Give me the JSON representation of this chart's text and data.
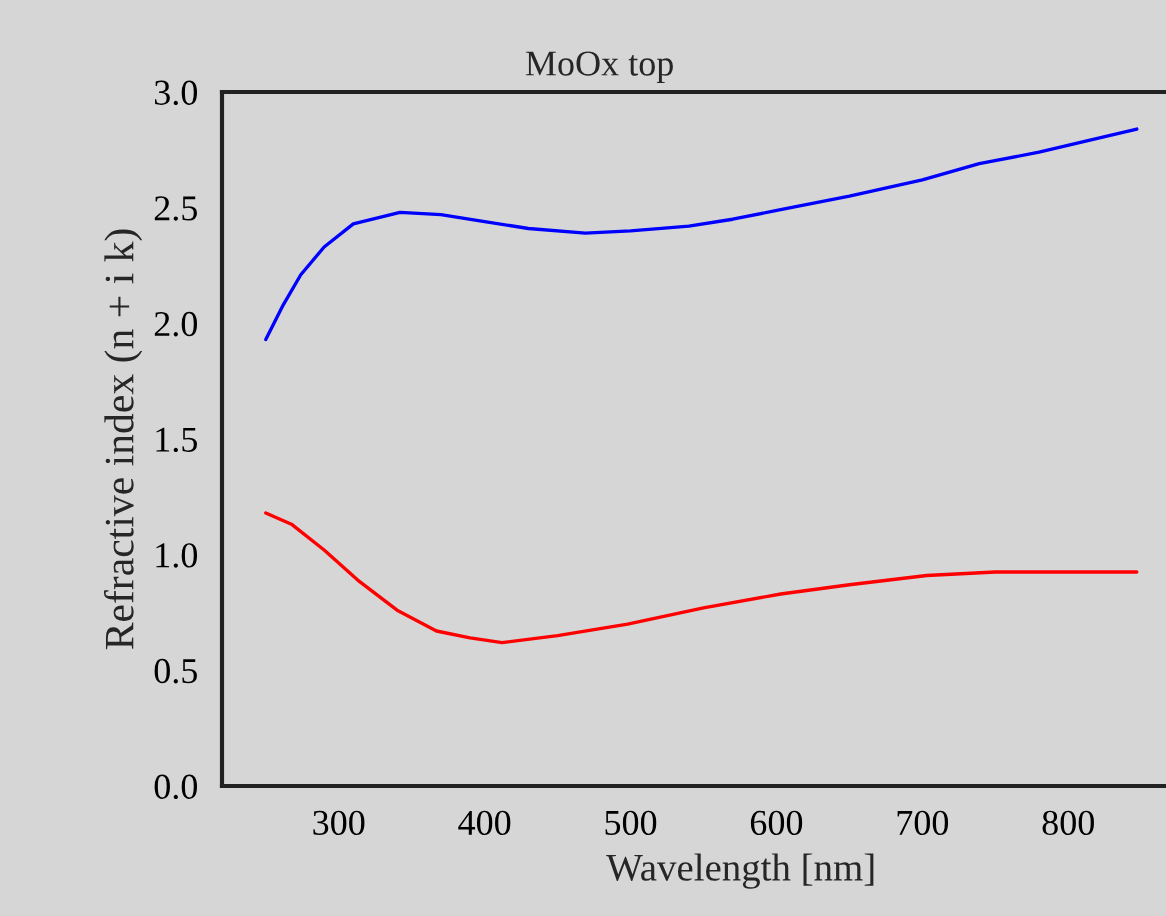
{
  "chart_data": {
    "type": "line",
    "title": "MoOx top",
    "xlabel": "Wavelength [nm]",
    "ylabel": "Refractive index (n + i k)",
    "series": [
      {
        "color": "#0000ff",
        "x": [
          250,
          262,
          274,
          290,
          310,
          342,
          370,
          400,
          430,
          469,
          500,
          540,
          570,
          602,
          650,
          700,
          739,
          780,
          820,
          847
        ],
        "values": [
          1.93,
          2.08,
          2.21,
          2.33,
          2.43,
          2.48,
          2.47,
          2.44,
          2.41,
          2.39,
          2.4,
          2.42,
          2.45,
          2.49,
          2.55,
          2.62,
          2.69,
          2.74,
          2.8,
          2.84
        ]
      },
      {
        "color": "#ff0000",
        "x": [
          250,
          268,
          290,
          313,
          340,
          367,
          390,
          412,
          450,
          498,
          550,
          603,
          650,
          703,
          750,
          800,
          847
        ],
        "values": [
          1.18,
          1.13,
          1.02,
          0.89,
          0.76,
          0.67,
          0.64,
          0.62,
          0.65,
          0.7,
          0.77,
          0.83,
          0.87,
          0.91,
          0.925,
          0.925,
          0.925
        ]
      }
    ],
    "xlim": [
      220,
      867
    ],
    "ylim": [
      0,
      3
    ],
    "xticks": [
      300,
      400,
      500,
      600,
      700,
      800
    ],
    "yticks": [
      {
        "value": 0,
        "label": "0.0"
      },
      {
        "value": 0.5,
        "label": "0.5"
      },
      {
        "value": 1,
        "label": "1.0"
      },
      {
        "value": 1.5,
        "label": "1.5"
      },
      {
        "value": 2,
        "label": "2.0"
      },
      {
        "value": 2.5,
        "label": "2.5"
      },
      {
        "value": 3,
        "label": "3.0"
      }
    ],
    "grid": false,
    "legend": false,
    "line_style": "solid",
    "marker": "none"
  }
}
